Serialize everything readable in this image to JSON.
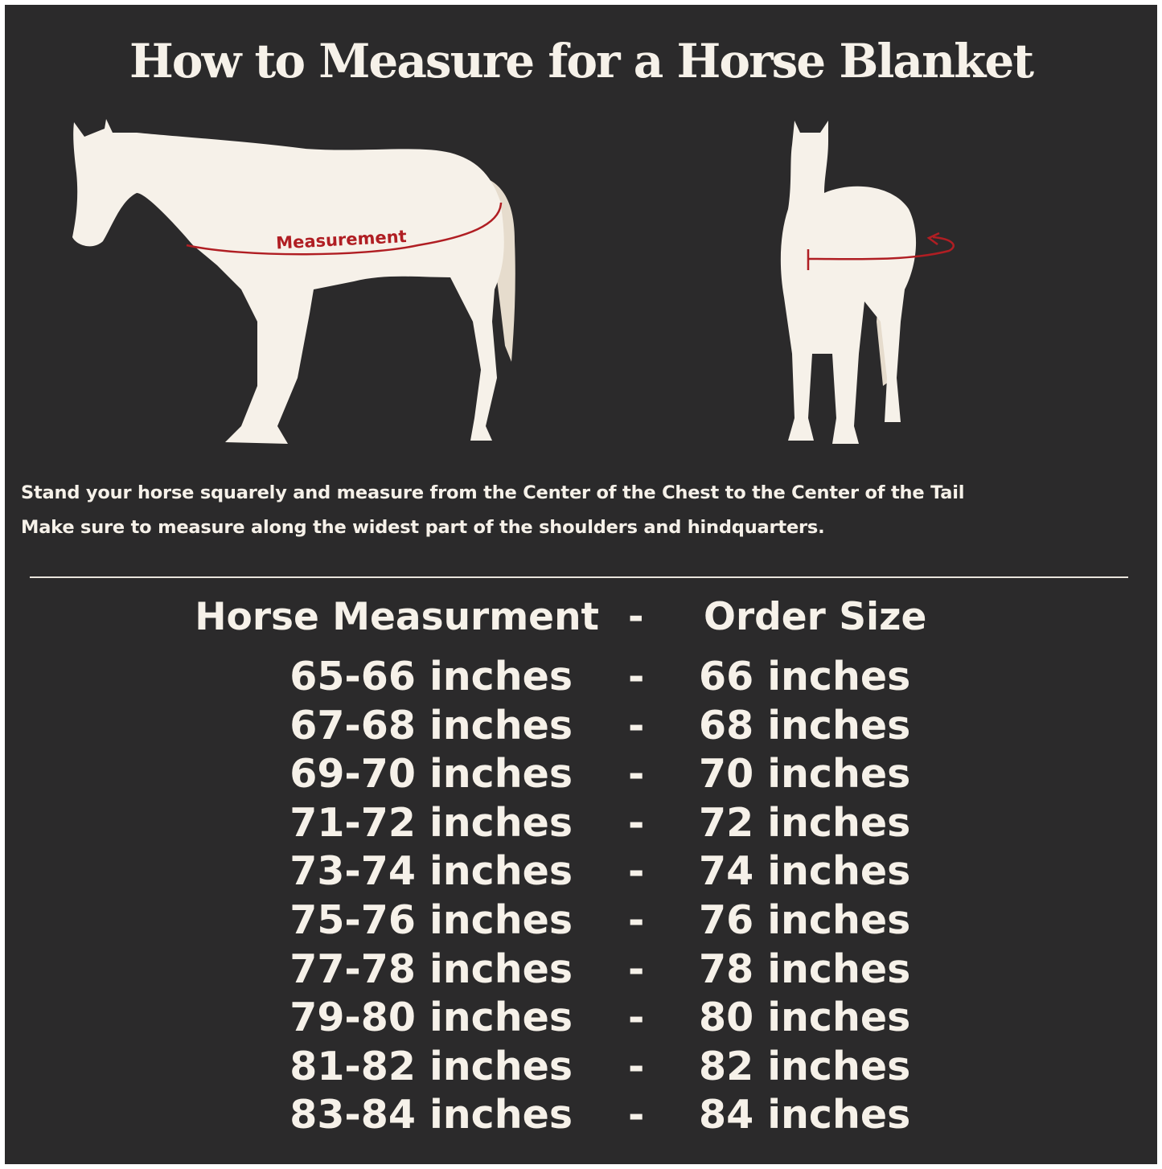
{
  "title": "How to Measure for a Horse Blanket",
  "diagram": {
    "side_label": "Measurement",
    "measure_color": "#b01e23",
    "horse_color": "#f6f1e9",
    "tail_color": "#e6dccd"
  },
  "instructions": [
    "Stand your horse squarely and measure from the Center of the Chest to the Center of the Tail",
    "Make sure to measure along the widest part of the shoulders and hindquarters."
  ],
  "table": {
    "headers": {
      "measurement": "Horse Measurment",
      "separator": "-",
      "size": "Order Size"
    },
    "rows": [
      {
        "measurement": "65-66 inches",
        "separator": "-",
        "size": "66 inches"
      },
      {
        "measurement": "67-68 inches",
        "separator": "-",
        "size": "68 inches"
      },
      {
        "measurement": "69-70 inches",
        "separator": "-",
        "size": "70 inches"
      },
      {
        "measurement": "71-72 inches",
        "separator": "-",
        "size": "72 inches"
      },
      {
        "measurement": "73-74 inches",
        "separator": "-",
        "size": "74 inches"
      },
      {
        "measurement": "75-76 inches",
        "separator": "-",
        "size": "76 inches"
      },
      {
        "measurement": "77-78 inches",
        "separator": "-",
        "size": "78 inches"
      },
      {
        "measurement": "79-80 inches",
        "separator": "-",
        "size": "80 inches"
      },
      {
        "measurement": "81-82 inches",
        "separator": "-",
        "size": "82 inches"
      },
      {
        "measurement": "83-84 inches",
        "separator": "-",
        "size": "84 inches"
      }
    ]
  },
  "colors": {
    "background": "#2b2a2b",
    "text": "#f6f1e9"
  }
}
